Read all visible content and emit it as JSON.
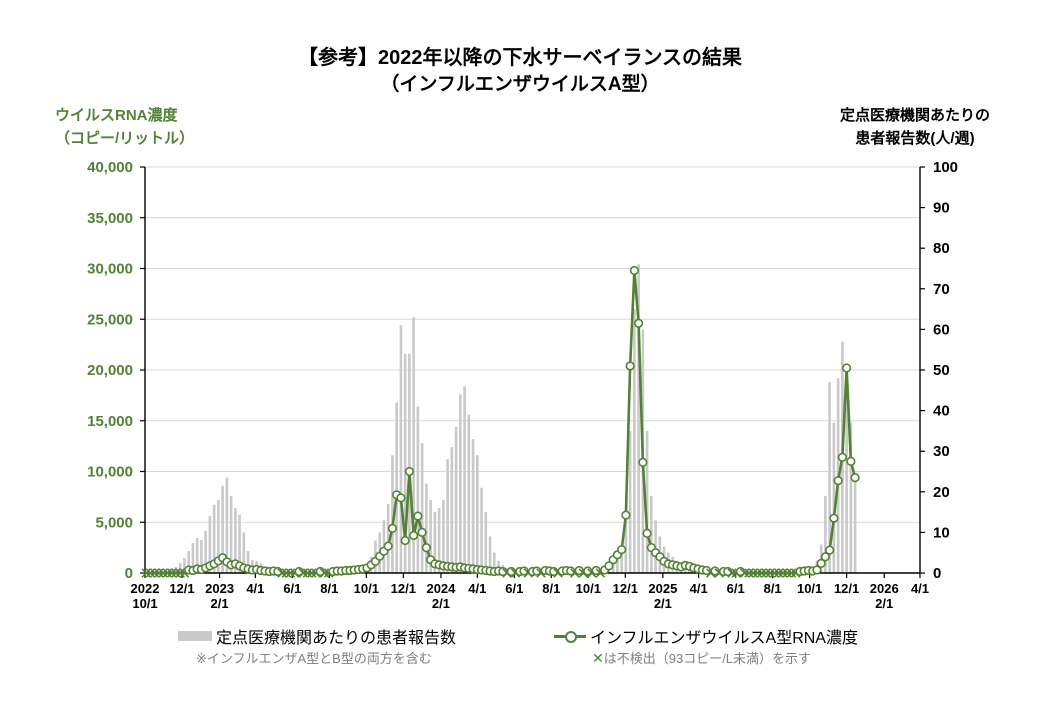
{
  "page": {
    "title_line1": "【参考】2022年以降の下水サーベイランスの結果",
    "title_line2": "（インフルエンザウイルスA型）"
  },
  "left_axis": {
    "title_line1": "ウイルスRNA濃度",
    "title_line2": "（コピー/リットル）",
    "color": "#538135",
    "min": 0,
    "max": 40000,
    "step": 5000,
    "tick_labels": [
      "0",
      "5,000",
      "10,000",
      "15,000",
      "20,000",
      "25,000",
      "30,000",
      "35,000",
      "40,000"
    ]
  },
  "right_axis": {
    "title_line1": "定点医療機関あたりの",
    "title_line2": "患者報告数(人/週)",
    "color": "#000000",
    "min": 0,
    "max": 100,
    "step": 10,
    "tick_labels": [
      "0",
      "10",
      "20",
      "30",
      "40",
      "50",
      "60",
      "70",
      "80",
      "90",
      "100"
    ]
  },
  "legend": {
    "bars_label": "定点医療機関あたりの患者報告数",
    "bars_note": "※インフルエンザA型とB型の両方を含む",
    "line_label": "インフルエンザウイルスA型RNA濃度",
    "line_note_x": "✕",
    "line_note_rest": "は不検出（93コピー/L未満）を示す"
  },
  "colors": {
    "green": "#538135",
    "bar_gray": "#C9C9C9",
    "grid_gray": "#D9D9D9",
    "note_gray": "#7F7F7F",
    "axis_black": "#000000"
  },
  "chart_data": {
    "type": "bar+line dual-axis weekly time series",
    "x_start": "2022-10-01",
    "x_end": "2026-04-01",
    "series_start_date": "2022-10-03",
    "interval_days": 7,
    "x_ticks": [
      {
        "date": "2022-10-01",
        "year": "2022",
        "label": "10/1"
      },
      {
        "date": "2022-12-01",
        "label": "12/1"
      },
      {
        "date": "2023-02-01",
        "year": "2023",
        "label": "2/1"
      },
      {
        "date": "2023-04-01",
        "label": "4/1"
      },
      {
        "date": "2023-06-01",
        "label": "6/1"
      },
      {
        "date": "2023-08-01",
        "label": "8/1"
      },
      {
        "date": "2023-10-01",
        "label": "10/1"
      },
      {
        "date": "2023-12-01",
        "label": "12/1"
      },
      {
        "date": "2024-02-01",
        "year": "2024",
        "label": "2/1"
      },
      {
        "date": "2024-04-01",
        "label": "4/1"
      },
      {
        "date": "2024-06-01",
        "label": "6/1"
      },
      {
        "date": "2024-08-01",
        "label": "8/1"
      },
      {
        "date": "2024-10-01",
        "label": "10/1"
      },
      {
        "date": "2024-12-01",
        "label": "12/1"
      },
      {
        "date": "2025-02-01",
        "year": "2025",
        "label": "2/1"
      },
      {
        "date": "2025-04-01",
        "label": "4/1"
      },
      {
        "date": "2025-06-01",
        "label": "6/1"
      },
      {
        "date": "2025-08-01",
        "label": "8/1"
      },
      {
        "date": "2025-10-01",
        "label": "10/1"
      },
      {
        "date": "2025-12-01",
        "label": "12/1"
      },
      {
        "date": "2026-02-01",
        "year": "2026",
        "label": "2/1"
      },
      {
        "date": "2026-04-01",
        "label": "4/1"
      }
    ],
    "bars": {
      "name": "定点医療機関あたりの患者報告数",
      "axis": "right",
      "values": [
        null,
        null,
        null,
        null,
        0.3,
        0.5,
        0.8,
        1.5,
        2.5,
        3.7,
        5.4,
        7.4,
        8.6,
        8.1,
        10.4,
        14,
        16.8,
        18,
        21.5,
        23.5,
        19,
        16,
        14.3,
        10,
        5.4,
        3.2,
        3,
        2.4,
        1.2,
        0.8,
        0.6,
        0.5,
        0.4,
        0.3,
        0.2,
        0.2,
        0.1,
        0.1,
        0.1,
        0.1,
        0.1,
        0.1,
        0.2,
        0.2,
        0.2,
        0.3,
        0.3,
        0.4,
        0.5,
        0.8,
        1.2,
        1.8,
        2,
        4,
        8,
        10,
        13,
        17,
        29,
        42,
        61,
        54,
        54,
        63,
        41,
        32,
        22,
        18,
        15,
        16,
        18,
        28,
        31,
        36,
        44,
        46,
        39,
        33,
        29,
        21,
        15,
        9,
        5,
        3,
        2,
        1.2,
        0.8,
        0.5,
        0.4,
        0.3,
        0.3,
        0.3,
        0.2,
        0.2,
        0.2,
        0.3,
        0.3,
        0.3,
        0.4,
        0.4,
        0.4,
        0.5,
        0.5,
        0.6,
        0.7,
        0.8,
        0.9,
        1.1,
        1.3,
        1.7,
        2.5,
        3.7,
        5.4,
        13,
        35,
        65,
        76,
        60,
        35,
        19,
        13,
        9,
        6.5,
        5,
        4,
        3,
        2.5,
        2,
        1.7,
        1.4,
        1.2,
        1,
        0.8,
        0.6,
        0.5,
        0.4,
        0.3,
        0.2,
        0.2,
        0.2,
        0.1,
        0.1,
        0.1,
        0.1,
        0.1,
        0.1,
        0.1,
        0.1,
        0.1,
        0.1,
        0.1,
        0.2,
        0.2,
        0.3,
        0.4,
        0.5,
        0.7,
        1,
        3,
        7,
        19,
        47,
        37,
        48,
        57,
        50,
        37,
        24
      ]
    },
    "line": {
      "name": "インフルエンザウイルスA型RNA濃度",
      "axis": "left",
      "nondetect_marker": "X",
      "nondetect_meaning": "不検出（93コピー/L未満）",
      "values": [
        "X",
        "X",
        "X",
        "X",
        "X",
        "X",
        "X",
        "X",
        "X",
        "X",
        300,
        250,
        400,
        350,
        500,
        700,
        900,
        1200,
        1500,
        1100,
        800,
        900,
        700,
        500,
        400,
        300,
        350,
        250,
        200,
        150,
        200,
        150,
        "X",
        "X",
        "X",
        "X",
        150,
        "X",
        "X",
        "X",
        "X",
        150,
        "X",
        "X",
        150,
        200,
        200,
        250,
        250,
        300,
        350,
        400,
        500,
        800,
        1150,
        1650,
        2150,
        2650,
        4400,
        7700,
        7400,
        3200,
        10000,
        3700,
        5600,
        4000,
        2500,
        1300,
        900,
        800,
        700,
        650,
        600,
        550,
        600,
        500,
        450,
        400,
        350,
        300,
        250,
        200,
        150,
        200,
        150,
        "X",
        150,
        "X",
        150,
        200,
        "X",
        150,
        200,
        "X",
        250,
        200,
        150,
        "X",
        200,
        250,
        200,
        "X",
        250,
        "X",
        200,
        "X",
        250,
        "X",
        300,
        700,
        1300,
        1800,
        2300,
        5700,
        20400,
        29800,
        24600,
        10900,
        3900,
        2500,
        2000,
        1600,
        1150,
        900,
        800,
        700,
        600,
        750,
        650,
        500,
        400,
        300,
        250,
        "X",
        200,
        "X",
        150,
        150,
        "X",
        "X",
        150,
        "X",
        "X",
        "X",
        "X",
        "X",
        "X",
        "X",
        "X",
        "X",
        "X",
        "X",
        "X",
        "X",
        150,
        200,
        250,
        200,
        300,
        950,
        1600,
        2250,
        5400,
        9100,
        11400,
        20200,
        11000,
        9400
      ]
    }
  }
}
